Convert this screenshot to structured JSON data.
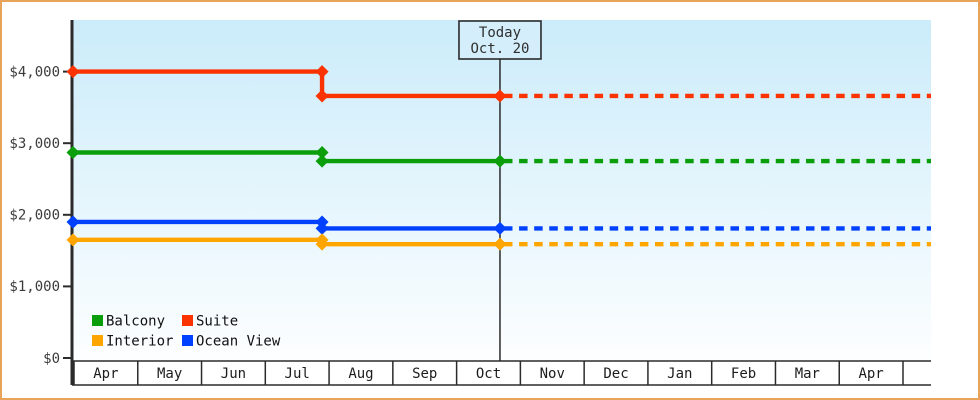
{
  "styles": {
    "frame_border_color": "#e9a45b",
    "plot_bg_top": "#cbecfa",
    "plot_bg_bottom": "#fdfeff",
    "axis_color": "#2b2b2b",
    "today_box_fill": "#d4effb"
  },
  "chart_data": {
    "type": "line",
    "subtype": "step-price-history-with-forecast",
    "title": "",
    "x_axis": {
      "month_labels": [
        "Apr",
        "May",
        "Jun",
        "Jul",
        "Aug",
        "Sep",
        "Oct",
        "Nov",
        "Dec",
        "Jan",
        "Feb",
        "Mar",
        "Apr"
      ],
      "has_trailing_empty_cell": true
    },
    "y_axis": {
      "tick_labels": [
        "$0",
        "$1,000",
        "$2,000",
        "$3,000",
        "$4,000"
      ],
      "tick_values": [
        0,
        1000,
        2000,
        3000,
        4000
      ],
      "range": [
        0,
        4720
      ],
      "grid": false
    },
    "today_marker": {
      "line1": "Today",
      "line2": "Oct. 20",
      "month_position": 6.68
    },
    "price_change_month_position": 3.89,
    "line_style_after_today": "dashed",
    "series": [
      {
        "name": "Suite",
        "color": "#fa3300",
        "price_before": 4000,
        "price_after": 3660
      },
      {
        "name": "Balcony",
        "color": "#0a9e0a",
        "price_before": 2870,
        "price_after": 2750
      },
      {
        "name": "Ocean View",
        "color": "#0040ff",
        "price_before": 1900,
        "price_after": 1810
      },
      {
        "name": "Interior",
        "color": "#ffa500",
        "price_before": 1650,
        "price_after": 1590
      }
    ],
    "legend": {
      "position": "bottom-left-inside",
      "items": [
        {
          "label": "Balcony"
        },
        {
          "label": "Suite"
        },
        {
          "label": "Interior"
        },
        {
          "label": "Ocean View"
        }
      ]
    }
  }
}
